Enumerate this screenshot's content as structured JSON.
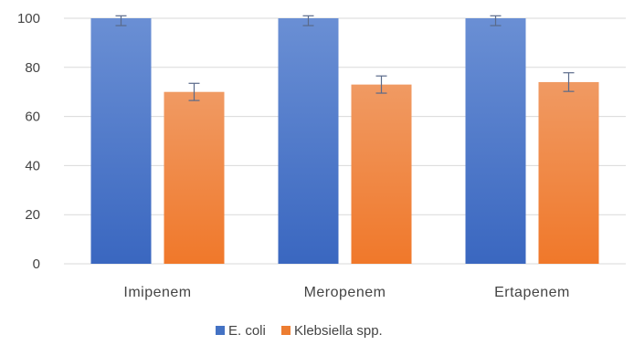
{
  "chart_data": {
    "type": "bar",
    "categories": [
      "Imipenem",
      "Meropenem",
      "Ertapenem"
    ],
    "series": [
      {
        "name": "E. coli",
        "color": "#4472C4",
        "values": [
          100,
          100,
          100
        ],
        "errors": [
          3,
          3,
          3
        ]
      },
      {
        "name": "Klebsiella spp.",
        "color": "#ED7D31",
        "values": [
          70,
          73,
          74
        ],
        "errors": [
          3.5,
          3.5,
          3.8
        ]
      }
    ],
    "yticks": [
      0,
      20,
      40,
      60,
      80,
      100
    ],
    "ylim": [
      0,
      100
    ],
    "grid": true,
    "legend": "bottom-center"
  }
}
